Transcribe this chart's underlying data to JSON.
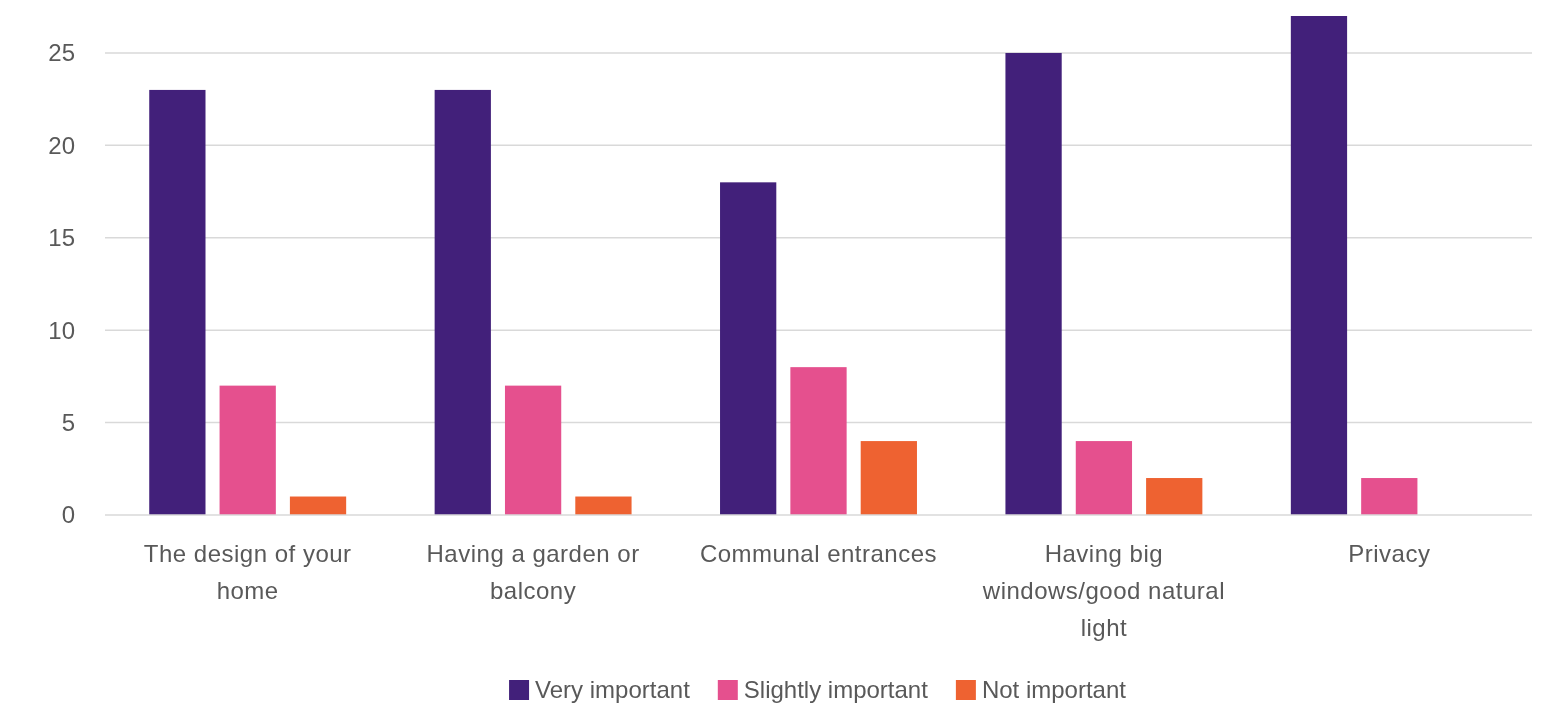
{
  "chart_data": {
    "type": "bar",
    "categories": [
      "The design of your home",
      "Having a garden or balcony",
      "Communal entrances",
      "Having big windows/good natural light",
      "Privacy"
    ],
    "series": [
      {
        "name": "Very important",
        "color": "#42207a",
        "values": [
          23,
          23,
          18,
          25,
          27
        ]
      },
      {
        "name": "Slightly important",
        "color": "#e5508e",
        "values": [
          7,
          7,
          8,
          4,
          2
        ]
      },
      {
        "name": "Not important",
        "color": "#ee6231",
        "values": [
          1,
          1,
          4,
          2,
          null
        ]
      }
    ],
    "ylim": [
      0,
      27
    ],
    "yticks": [
      0,
      5,
      10,
      15,
      20,
      25
    ],
    "grid": "y",
    "legend": "bottom"
  }
}
